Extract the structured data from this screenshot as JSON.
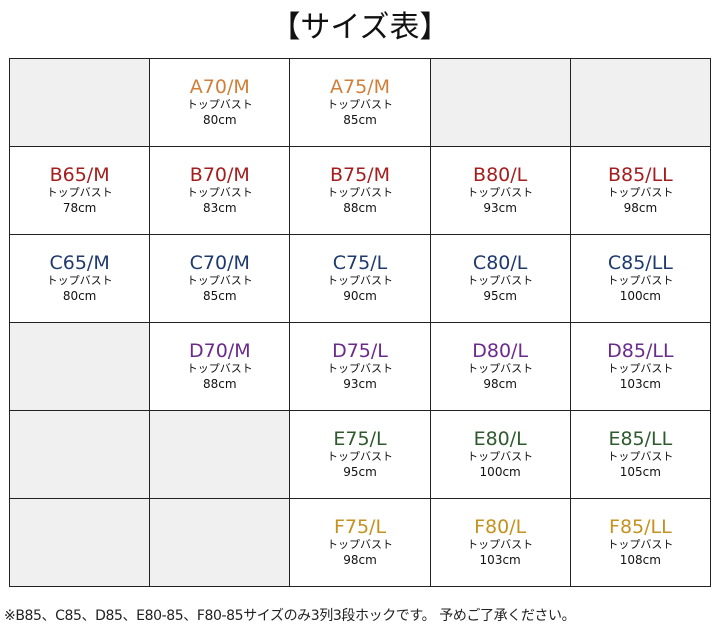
{
  "title": "【サイズ表】",
  "colors": {
    "A": "#d07f3a",
    "B": "#a51d1d",
    "C": "#1e3a6e",
    "D": "#6a2b8c",
    "E": "#2e5a2e",
    "F": "#c4921e"
  },
  "rows": [
    {
      "cup": "A",
      "cells": [
        null,
        {
          "size": "A70/M",
          "label": "トップバスト",
          "value": "80cm"
        },
        {
          "size": "A75/M",
          "label": "トップバスト",
          "value": "85cm"
        },
        null,
        null
      ]
    },
    {
      "cup": "B",
      "cells": [
        {
          "size": "B65/M",
          "label": "トップバスト",
          "value": "78cm"
        },
        {
          "size": "B70/M",
          "label": "トップバスト",
          "value": "83cm"
        },
        {
          "size": "B75/M",
          "label": "トップバスト",
          "value": "88cm"
        },
        {
          "size": "B80/L",
          "label": "トップバスト",
          "value": "93cm"
        },
        {
          "size": "B85/LL",
          "label": "トップバスト",
          "value": "98cm"
        }
      ]
    },
    {
      "cup": "C",
      "cells": [
        {
          "size": "C65/M",
          "label": "トップバスト",
          "value": "80cm"
        },
        {
          "size": "C70/M",
          "label": "トップバスト",
          "value": "85cm"
        },
        {
          "size": "C75/L",
          "label": "トップバスト",
          "value": "90cm"
        },
        {
          "size": "C80/L",
          "label": "トップバスト",
          "value": "95cm"
        },
        {
          "size": "C85/LL",
          "label": "トップバスト",
          "value": "100cm"
        }
      ]
    },
    {
      "cup": "D",
      "cells": [
        null,
        {
          "size": "D70/M",
          "label": "トップバスト",
          "value": "88cm"
        },
        {
          "size": "D75/L",
          "label": "トップバスト",
          "value": "93cm"
        },
        {
          "size": "D80/L",
          "label": "トップバスト",
          "value": "98cm"
        },
        {
          "size": "D85/LL",
          "label": "トップバスト",
          "value": "103cm"
        }
      ]
    },
    {
      "cup": "E",
      "cells": [
        null,
        null,
        {
          "size": "E75/L",
          "label": "トップバスト",
          "value": "95cm"
        },
        {
          "size": "E80/L",
          "label": "トップバスト",
          "value": "100cm"
        },
        {
          "size": "E85/LL",
          "label": "トップバスト",
          "value": "105cm"
        }
      ]
    },
    {
      "cup": "F",
      "cells": [
        null,
        null,
        {
          "size": "F75/L",
          "label": "トップバスト",
          "value": "98cm"
        },
        {
          "size": "F80/L",
          "label": "トップバスト",
          "value": "103cm"
        },
        {
          "size": "F85/LL",
          "label": "トップバスト",
          "value": "108cm"
        }
      ]
    }
  ],
  "note": "※B85、C85、D85、E80-85、F80-85サイズのみ3列3段ホックです。 予めご了承ください。"
}
